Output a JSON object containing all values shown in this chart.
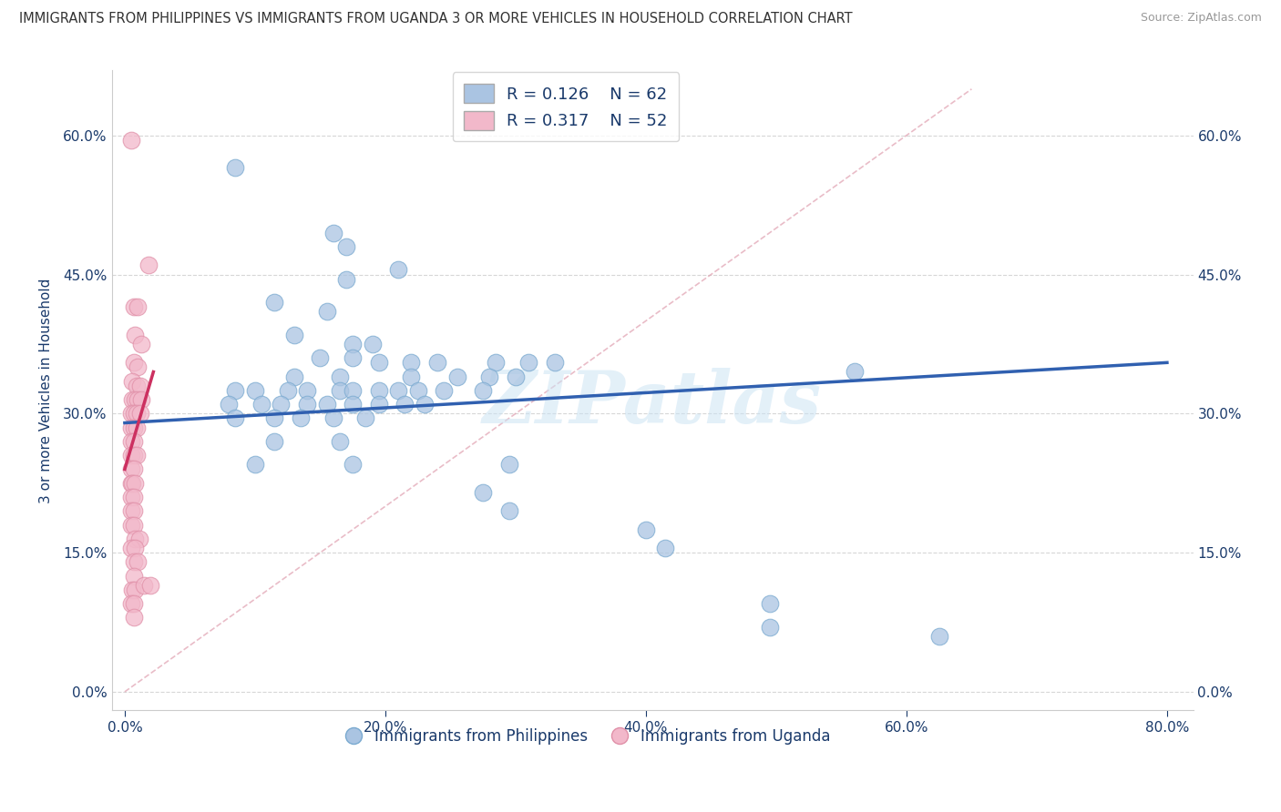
{
  "title": "IMMIGRANTS FROM PHILIPPINES VS IMMIGRANTS FROM UGANDA 3 OR MORE VEHICLES IN HOUSEHOLD CORRELATION CHART",
  "source": "Source: ZipAtlas.com",
  "ylabel": "3 or more Vehicles in Household",
  "legend_blue_R": "R = 0.126",
  "legend_blue_N": "N = 62",
  "legend_pink_R": "R = 0.317",
  "legend_pink_N": "N = 52",
  "legend_label_blue": "Immigrants from Philippines",
  "legend_label_pink": "Immigrants from Uganda",
  "xlim": [
    -0.01,
    0.82
  ],
  "ylim": [
    -0.02,
    0.67
  ],
  "xticks": [
    0.0,
    0.2,
    0.4,
    0.6,
    0.8
  ],
  "yticks": [
    0.0,
    0.15,
    0.3,
    0.45,
    0.6
  ],
  "xtick_labels": [
    "0.0%",
    "20.0%",
    "40.0%",
    "60.0%",
    "80.0%"
  ],
  "ytick_labels": [
    "0.0%",
    "15.0%",
    "30.0%",
    "45.0%",
    "60.0%"
  ],
  "watermark": "ZIPatlas",
  "blue_color": "#aac4e2",
  "pink_color": "#f2b8ca",
  "blue_line_color": "#3060b0",
  "pink_line_color": "#cc3060",
  "blue_scatter": [
    [
      0.085,
      0.565
    ],
    [
      0.16,
      0.495
    ],
    [
      0.17,
      0.48
    ],
    [
      0.17,
      0.445
    ],
    [
      0.21,
      0.455
    ],
    [
      0.115,
      0.42
    ],
    [
      0.155,
      0.41
    ],
    [
      0.13,
      0.385
    ],
    [
      0.175,
      0.375
    ],
    [
      0.19,
      0.375
    ],
    [
      0.15,
      0.36
    ],
    [
      0.175,
      0.36
    ],
    [
      0.195,
      0.355
    ],
    [
      0.22,
      0.355
    ],
    [
      0.24,
      0.355
    ],
    [
      0.285,
      0.355
    ],
    [
      0.31,
      0.355
    ],
    [
      0.33,
      0.355
    ],
    [
      0.13,
      0.34
    ],
    [
      0.165,
      0.34
    ],
    [
      0.22,
      0.34
    ],
    [
      0.255,
      0.34
    ],
    [
      0.28,
      0.34
    ],
    [
      0.3,
      0.34
    ],
    [
      0.085,
      0.325
    ],
    [
      0.1,
      0.325
    ],
    [
      0.125,
      0.325
    ],
    [
      0.14,
      0.325
    ],
    [
      0.165,
      0.325
    ],
    [
      0.175,
      0.325
    ],
    [
      0.195,
      0.325
    ],
    [
      0.21,
      0.325
    ],
    [
      0.225,
      0.325
    ],
    [
      0.245,
      0.325
    ],
    [
      0.275,
      0.325
    ],
    [
      0.56,
      0.345
    ],
    [
      0.08,
      0.31
    ],
    [
      0.105,
      0.31
    ],
    [
      0.12,
      0.31
    ],
    [
      0.14,
      0.31
    ],
    [
      0.155,
      0.31
    ],
    [
      0.175,
      0.31
    ],
    [
      0.195,
      0.31
    ],
    [
      0.215,
      0.31
    ],
    [
      0.23,
      0.31
    ],
    [
      0.085,
      0.295
    ],
    [
      0.115,
      0.295
    ],
    [
      0.135,
      0.295
    ],
    [
      0.16,
      0.295
    ],
    [
      0.185,
      0.295
    ],
    [
      0.115,
      0.27
    ],
    [
      0.165,
      0.27
    ],
    [
      0.1,
      0.245
    ],
    [
      0.175,
      0.245
    ],
    [
      0.295,
      0.245
    ],
    [
      0.275,
      0.215
    ],
    [
      0.295,
      0.195
    ],
    [
      0.4,
      0.175
    ],
    [
      0.415,
      0.155
    ],
    [
      0.495,
      0.095
    ],
    [
      0.495,
      0.07
    ],
    [
      0.625,
      0.06
    ]
  ],
  "pink_scatter": [
    [
      0.005,
      0.595
    ],
    [
      0.018,
      0.46
    ],
    [
      0.007,
      0.415
    ],
    [
      0.01,
      0.415
    ],
    [
      0.008,
      0.385
    ],
    [
      0.013,
      0.375
    ],
    [
      0.007,
      0.355
    ],
    [
      0.01,
      0.35
    ],
    [
      0.006,
      0.335
    ],
    [
      0.009,
      0.33
    ],
    [
      0.012,
      0.33
    ],
    [
      0.006,
      0.315
    ],
    [
      0.008,
      0.315
    ],
    [
      0.01,
      0.315
    ],
    [
      0.013,
      0.315
    ],
    [
      0.005,
      0.3
    ],
    [
      0.007,
      0.3
    ],
    [
      0.009,
      0.3
    ],
    [
      0.012,
      0.3
    ],
    [
      0.005,
      0.285
    ],
    [
      0.007,
      0.285
    ],
    [
      0.009,
      0.285
    ],
    [
      0.005,
      0.27
    ],
    [
      0.007,
      0.27
    ],
    [
      0.005,
      0.255
    ],
    [
      0.007,
      0.255
    ],
    [
      0.009,
      0.255
    ],
    [
      0.005,
      0.24
    ],
    [
      0.007,
      0.24
    ],
    [
      0.005,
      0.225
    ],
    [
      0.006,
      0.225
    ],
    [
      0.008,
      0.225
    ],
    [
      0.005,
      0.21
    ],
    [
      0.007,
      0.21
    ],
    [
      0.005,
      0.195
    ],
    [
      0.007,
      0.195
    ],
    [
      0.005,
      0.18
    ],
    [
      0.007,
      0.18
    ],
    [
      0.008,
      0.165
    ],
    [
      0.011,
      0.165
    ],
    [
      0.005,
      0.155
    ],
    [
      0.008,
      0.155
    ],
    [
      0.007,
      0.14
    ],
    [
      0.01,
      0.14
    ],
    [
      0.007,
      0.125
    ],
    [
      0.006,
      0.11
    ],
    [
      0.008,
      0.11
    ],
    [
      0.005,
      0.095
    ],
    [
      0.007,
      0.095
    ],
    [
      0.007,
      0.08
    ],
    [
      0.015,
      0.115
    ],
    [
      0.02,
      0.115
    ]
  ],
  "blue_line_x": [
    0.0,
    0.8
  ],
  "blue_line_y": [
    0.29,
    0.355
  ],
  "pink_line_x": [
    0.0,
    0.022
  ],
  "pink_line_y": [
    0.24,
    0.345
  ],
  "ref_line_x": [
    0.0,
    0.65
  ],
  "ref_line_y": [
    0.0,
    0.65
  ],
  "title_fontsize": 10.5,
  "axis_color": "#1a3a6b",
  "grid_color": "#cccccc"
}
